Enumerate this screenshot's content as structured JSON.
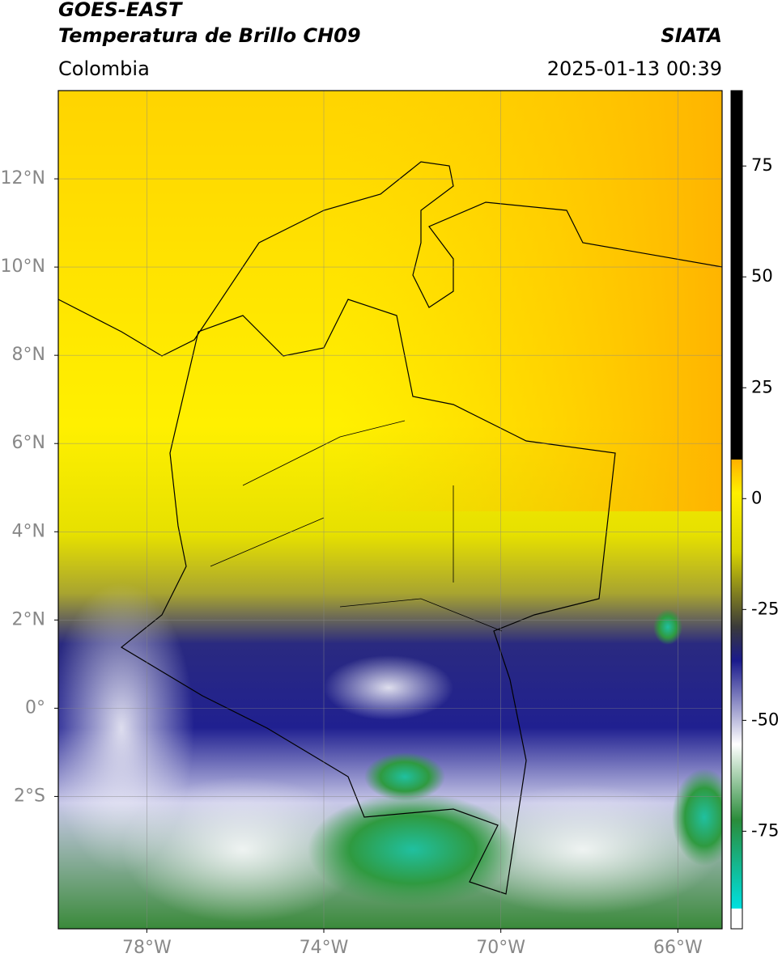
{
  "header": {
    "title": "GOES-EAST",
    "subtitle": "Temperatura de Brillo CH09",
    "region": "Colombia",
    "source": "SIATA",
    "datetime": "2025-01-13 00:39"
  },
  "map": {
    "lonlim": [
      -80,
      -65
    ],
    "latlim": [
      -5,
      14
    ],
    "lon_ticks": [
      {
        "value": -78,
        "label": "78°W"
      },
      {
        "value": -74,
        "label": "74°W"
      },
      {
        "value": -70,
        "label": "70°W"
      },
      {
        "value": -66,
        "label": "66°W"
      }
    ],
    "lat_ticks": [
      {
        "value": 12,
        "label": "12°N"
      },
      {
        "value": 10,
        "label": "10°N"
      },
      {
        "value": 8,
        "label": "8°N"
      },
      {
        "value": 6,
        "label": "6°N"
      },
      {
        "value": 4,
        "label": "4°N"
      },
      {
        "value": 2,
        "label": "2°N"
      },
      {
        "value": 0,
        "label": "0°"
      },
      {
        "value": -2,
        "label": "2°S"
      }
    ],
    "grid": true
  },
  "colorbar": {
    "lim": [
      -97,
      92
    ],
    "ticks": [
      75,
      50,
      25,
      0,
      -25,
      -50,
      -75
    ]
  }
}
